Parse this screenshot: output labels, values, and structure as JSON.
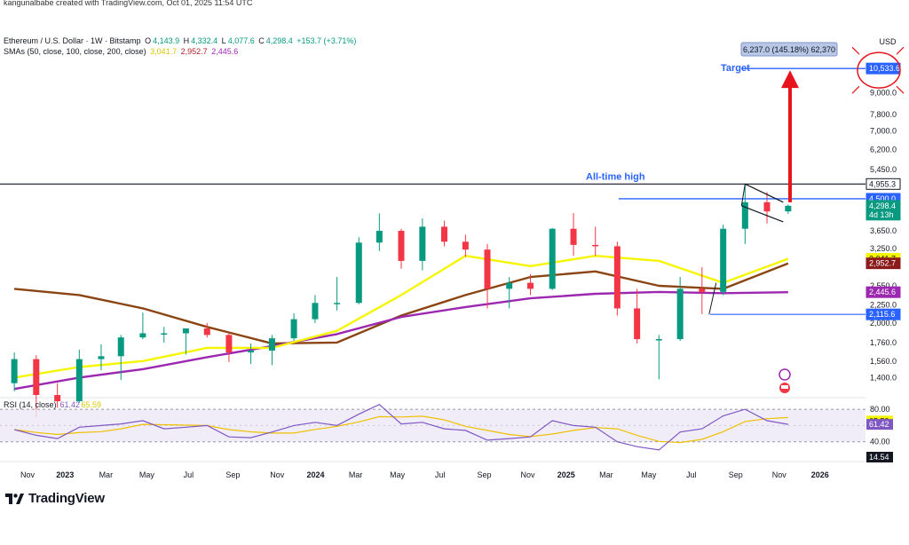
{
  "header": {
    "attribution": "kangunalbabe created with TradingView.com, Oct 01, 2025 11:54 UTC",
    "symbol": "Ethereum / U.S. Dollar · 1W · Bitstamp",
    "ohlc": {
      "o_label": "O",
      "o": "4,143.9",
      "h_label": "H",
      "h": "4,332.4",
      "l_label": "L",
      "l": "4,077.6",
      "c_label": "C",
      "c": "4,298.4",
      "change": "+153.7 (+3.71%)"
    },
    "sma_label": "SMAs (50, close, 100, close, 200, close)",
    "sma_values": [
      "3,041.7",
      "2,952.7",
      "2,445.6"
    ]
  },
  "price_axis": {
    "currency": "USD",
    "ticks": [
      {
        "label": "9,000.0",
        "value": 9000
      },
      {
        "label": "7,800.0",
        "value": 7800
      },
      {
        "label": "7,000.0",
        "value": 7000
      },
      {
        "label": "6,200.0",
        "value": 6200
      },
      {
        "label": "5,450.0",
        "value": 5450
      },
      {
        "label": "3,650.0",
        "value": 3650
      },
      {
        "label": "3,250.0",
        "value": 3250
      },
      {
        "label": "2,550.0",
        "value": 2550
      },
      {
        "label": "2,250.0",
        "value": 2250
      },
      {
        "label": "2,000.0",
        "value": 2000
      },
      {
        "label": "1,760.0",
        "value": 1760
      },
      {
        "label": "1,560.0",
        "value": 1560
      },
      {
        "label": "1,400.0",
        "value": 1400
      }
    ],
    "badges": [
      {
        "label": "10,533.6",
        "value": 10533.6,
        "bg": "#2962ff",
        "fg": "#ffffff"
      },
      {
        "label": "4,955.3",
        "value": 4955.3,
        "bg": "#ffffff",
        "fg": "#131722",
        "border": "#131722"
      },
      {
        "label": "4,500.0",
        "value": 4500,
        "bg": "#2962ff",
        "fg": "#ffffff"
      },
      {
        "label": "4,298.4",
        "value": 4298.4,
        "bg": "#089981",
        "fg": "#ffffff",
        "sub": "4d 13h"
      },
      {
        "label": "3,041.7",
        "value": 3041.7,
        "bg": "#f5f500",
        "fg": "#131722"
      },
      {
        "label": "2,952.7",
        "value": 2952.7,
        "bg": "#8b1a1a",
        "fg": "#ffffff"
      },
      {
        "label": "2,445.6",
        "value": 2445.6,
        "bg": "#9c27b0",
        "fg": "#ffffff"
      },
      {
        "label": "2,115.6",
        "value": 2115.6,
        "bg": "#2962ff",
        "fg": "#ffffff"
      }
    ]
  },
  "time_axis": {
    "labels": [
      {
        "label": "Nov",
        "pos": 0.0
      },
      {
        "label": "2023",
        "pos": 0.044
      },
      {
        "label": "Mar",
        "pos": 0.092
      },
      {
        "label": "May",
        "pos": 0.14
      },
      {
        "label": "Jul",
        "pos": 0.189
      },
      {
        "label": "Sep",
        "pos": 0.241
      },
      {
        "label": "Nov",
        "pos": 0.293
      },
      {
        "label": "2024",
        "pos": 0.338
      },
      {
        "label": "Mar",
        "pos": 0.385
      },
      {
        "label": "May",
        "pos": 0.434
      },
      {
        "label": "Jul",
        "pos": 0.484
      },
      {
        "label": "Sep",
        "pos": 0.536
      },
      {
        "label": "Nov",
        "pos": 0.587
      },
      {
        "label": "2025",
        "pos": 0.632
      },
      {
        "label": "Mar",
        "pos": 0.679
      },
      {
        "label": "May",
        "pos": 0.729
      },
      {
        "label": "Jul",
        "pos": 0.779
      },
      {
        "label": "Sep",
        "pos": 0.831
      },
      {
        "label": "Nov",
        "pos": 0.882
      },
      {
        "label": "2026",
        "pos": 0.93
      }
    ]
  },
  "annotations": {
    "all_time_high": "All-time high",
    "target": "Target",
    "measure": "6,237.0 (145.18%) 62,370"
  },
  "rsi": {
    "label": "RSI (14, close)",
    "value_rsi": "61.42",
    "value_ma": "65.59",
    "ticks": [
      {
        "label": "80.00",
        "value": 80
      },
      {
        "label": "40.00",
        "value": 40
      }
    ],
    "badges": [
      {
        "label": "65.59",
        "value": 65.59,
        "bg": "#f5f500",
        "fg": "#131722"
      },
      {
        "label": "61.42",
        "value": 61.42,
        "bg": "#7e57c2",
        "fg": "#ffffff"
      },
      {
        "label": "14.54",
        "value": 14.54,
        "bg": "#131722",
        "fg": "#ffffff"
      }
    ]
  },
  "brand": {
    "name": "TradingView"
  },
  "colors": {
    "up": "#089981",
    "down": "#f23645",
    "sma50": "#f5f500",
    "sma100": "#8b4513",
    "sma200": "#9c27b0",
    "hline": "#2962ff",
    "ath": "#131722",
    "arrow": "#e8141c",
    "rsi_line": "#7e57c2",
    "rsi_ma": "#f0c000"
  },
  "chart_data": {
    "type": "candlestick",
    "title": "Ethereum / U.S. Dollar · 1W · Bitstamp",
    "y_scale": "log",
    "ylim": [
      1250,
      11500
    ],
    "xlim": [
      "2022-10",
      "2026-02"
    ],
    "candles": [
      {
        "date": "2022-10",
        "o": 1350,
        "c": 1580,
        "h": 1650,
        "l": 1280
      },
      {
        "date": "2022-11",
        "o": 1580,
        "c": 1250,
        "h": 1620,
        "l": 1080
      },
      {
        "date": "2022-12",
        "o": 1250,
        "c": 1200,
        "h": 1350,
        "l": 1150
      },
      {
        "date": "2023-01",
        "o": 1200,
        "c": 1580,
        "h": 1680,
        "l": 1190
      },
      {
        "date": "2023-02",
        "o": 1580,
        "c": 1610,
        "h": 1740,
        "l": 1470
      },
      {
        "date": "2023-03",
        "o": 1610,
        "c": 1820,
        "h": 1850,
        "l": 1380
      },
      {
        "date": "2023-04",
        "o": 1820,
        "c": 1870,
        "h": 2140,
        "l": 1800
      },
      {
        "date": "2023-05",
        "o": 1870,
        "c": 1870,
        "h": 1950,
        "l": 1760
      },
      {
        "date": "2023-06",
        "o": 1870,
        "c": 1930,
        "h": 1930,
        "l": 1630
      },
      {
        "date": "2023-07",
        "o": 1930,
        "c": 1850,
        "h": 2000,
        "l": 1820
      },
      {
        "date": "2023-08",
        "o": 1850,
        "c": 1650,
        "h": 1880,
        "l": 1550
      },
      {
        "date": "2023-09",
        "o": 1650,
        "c": 1670,
        "h": 1750,
        "l": 1530
      },
      {
        "date": "2023-10",
        "o": 1670,
        "c": 1810,
        "h": 1850,
        "l": 1520
      },
      {
        "date": "2023-11",
        "o": 1810,
        "c": 2050,
        "h": 2130,
        "l": 1780
      },
      {
        "date": "2023-12",
        "o": 2050,
        "c": 2280,
        "h": 2400,
        "l": 2000
      },
      {
        "date": "2024-01",
        "o": 2280,
        "c": 2280,
        "h": 2700,
        "l": 2170
      },
      {
        "date": "2024-02",
        "o": 2280,
        "c": 3380,
        "h": 3500,
        "l": 2260
      },
      {
        "date": "2024-03",
        "o": 3380,
        "c": 3650,
        "h": 4090,
        "l": 3200
      },
      {
        "date": "2024-04",
        "o": 3650,
        "c": 3000,
        "h": 3700,
        "l": 2850
      },
      {
        "date": "2024-05",
        "o": 3000,
        "c": 3750,
        "h": 3960,
        "l": 2820
      },
      {
        "date": "2024-06",
        "o": 3750,
        "c": 3400,
        "h": 3900,
        "l": 3300
      },
      {
        "date": "2024-07",
        "o": 3400,
        "c": 3230,
        "h": 3560,
        "l": 3080
      },
      {
        "date": "2024-08",
        "o": 3230,
        "c": 2500,
        "h": 3350,
        "l": 2200
      },
      {
        "date": "2024-09",
        "o": 2500,
        "c": 2600,
        "h": 2700,
        "l": 2200
      },
      {
        "date": "2024-10",
        "o": 2600,
        "c": 2500,
        "h": 2750,
        "l": 2400
      },
      {
        "date": "2024-11",
        "o": 2500,
        "c": 3700,
        "h": 3720,
        "l": 2480
      },
      {
        "date": "2024-12",
        "o": 3700,
        "c": 3330,
        "h": 4100,
        "l": 3100
      },
      {
        "date": "2025-01",
        "o": 3330,
        "c": 3300,
        "h": 3750,
        "l": 3100
      },
      {
        "date": "2025-02",
        "o": 3300,
        "c": 2200,
        "h": 3400,
        "l": 2100
      },
      {
        "date": "2025-03",
        "o": 2200,
        "c": 1800,
        "h": 2500,
        "l": 1750
      },
      {
        "date": "2025-04",
        "o": 1800,
        "c": 1800,
        "h": 1850,
        "l": 1385
      },
      {
        "date": "2025-05",
        "o": 1800,
        "c": 2500,
        "h": 2700,
        "l": 1780
      },
      {
        "date": "2025-06",
        "o": 2500,
        "c": 2450,
        "h": 2880,
        "l": 2120
      },
      {
        "date": "2025-07",
        "o": 2450,
        "c": 3700,
        "h": 3800,
        "l": 2400
      },
      {
        "date": "2025-08",
        "o": 3700,
        "c": 4400,
        "h": 4955,
        "l": 3350
      },
      {
        "date": "2025-09",
        "o": 4400,
        "c": 4143.9,
        "h": 4700,
        "l": 3830
      },
      {
        "date": "2025-10",
        "o": 4143.9,
        "c": 4298.4,
        "h": 4332.4,
        "l": 4077.6
      }
    ],
    "sma50": [
      [
        "2022-10",
        1400
      ],
      [
        "2023-01",
        1500
      ],
      [
        "2023-04",
        1560
      ],
      [
        "2023-07",
        1700
      ],
      [
        "2023-10",
        1700
      ],
      [
        "2024-01",
        1900
      ],
      [
        "2024-04",
        2400
      ],
      [
        "2024-07",
        3100
      ],
      [
        "2024-10",
        2900
      ],
      [
        "2025-01",
        3100
      ],
      [
        "2025-04",
        3000
      ],
      [
        "2025-07",
        2600
      ],
      [
        "2025-10",
        3041.7
      ]
    ],
    "sma100": [
      [
        "2022-10",
        2500
      ],
      [
        "2023-01",
        2400
      ],
      [
        "2023-04",
        2200
      ],
      [
        "2023-07",
        1950
      ],
      [
        "2023-10",
        1750
      ],
      [
        "2024-01",
        1760
      ],
      [
        "2024-04",
        2100
      ],
      [
        "2024-07",
        2400
      ],
      [
        "2024-10",
        2700
      ],
      [
        "2025-01",
        2800
      ],
      [
        "2025-04",
        2550
      ],
      [
        "2025-07",
        2500
      ],
      [
        "2025-10",
        2952.7
      ]
    ],
    "sma200": [
      [
        "2022-10",
        1300
      ],
      [
        "2023-01",
        1400
      ],
      [
        "2023-04",
        1480
      ],
      [
        "2023-07",
        1600
      ],
      [
        "2023-10",
        1720
      ],
      [
        "2024-01",
        1860
      ],
      [
        "2024-04",
        2080
      ],
      [
        "2024-07",
        2220
      ],
      [
        "2024-10",
        2350
      ],
      [
        "2025-01",
        2420
      ],
      [
        "2025-04",
        2450
      ],
      [
        "2025-07",
        2430
      ],
      [
        "2025-10",
        2445.6
      ]
    ],
    "horizontal_levels": [
      4955.3,
      4500.0,
      2115.6
    ],
    "target": 10533.6,
    "rsi_range": [
      0,
      100
    ],
    "rsi_values": [
      [
        "2022-10",
        55
      ],
      [
        "2022-11",
        48
      ],
      [
        "2022-12",
        44
      ],
      [
        "2023-01",
        58
      ],
      [
        "2023-02",
        60
      ],
      [
        "2023-03",
        62
      ],
      [
        "2023-04",
        66
      ],
      [
        "2023-05",
        56
      ],
      [
        "2023-06",
        58
      ],
      [
        "2023-07",
        60
      ],
      [
        "2023-08",
        46
      ],
      [
        "2023-09",
        45
      ],
      [
        "2023-10",
        52
      ],
      [
        "2023-11",
        60
      ],
      [
        "2023-12",
        64
      ],
      [
        "2024-01",
        60
      ],
      [
        "2024-02",
        74
      ],
      [
        "2024-03",
        86
      ],
      [
        "2024-04",
        62
      ],
      [
        "2024-05",
        64
      ],
      [
        "2024-06",
        56
      ],
      [
        "2024-07",
        54
      ],
      [
        "2024-08",
        42
      ],
      [
        "2024-09",
        44
      ],
      [
        "2024-10",
        46
      ],
      [
        "2024-11",
        66
      ],
      [
        "2024-12",
        60
      ],
      [
        "2025-01",
        58
      ],
      [
        "2025-02",
        40
      ],
      [
        "2025-03",
        34
      ],
      [
        "2025-04",
        30
      ],
      [
        "2025-05",
        52
      ],
      [
        "2025-06",
        56
      ],
      [
        "2025-07",
        72
      ],
      [
        "2025-08",
        80
      ],
      [
        "2025-09",
        66
      ],
      [
        "2025-10",
        61.42
      ]
    ]
  }
}
